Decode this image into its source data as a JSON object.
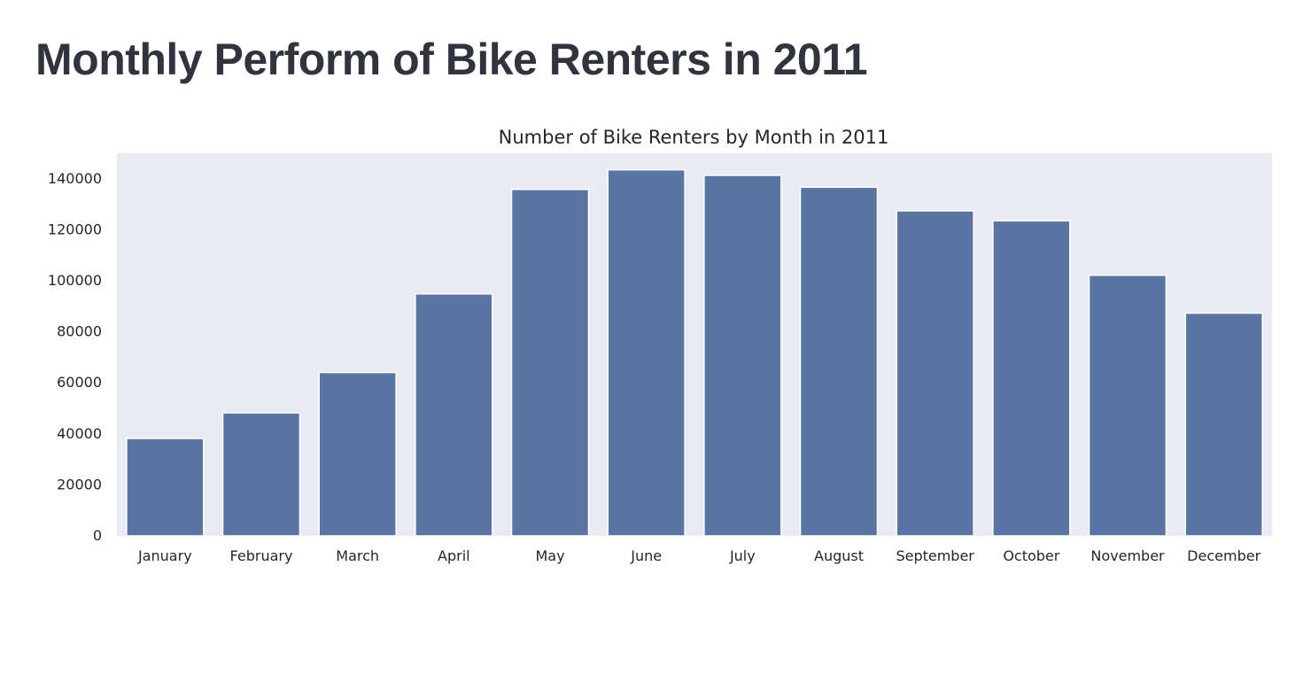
{
  "page": {
    "title": "Monthly Perform of Bike Renters in 2011"
  },
  "colors": {
    "plot_background": "#eaeaf2",
    "bar_fill": "#5875a4",
    "bar_edge": "#ffffff",
    "text": "#262626",
    "title_text": "#31333f"
  },
  "chart_data": {
    "type": "bar",
    "title": "Number of Bike Renters by Month in 2011",
    "xlabel": "",
    "ylabel": "",
    "categories": [
      "January",
      "February",
      "March",
      "April",
      "May",
      "June",
      "July",
      "August",
      "September",
      "October",
      "November",
      "December"
    ],
    "values": [
      38189,
      48215,
      64045,
      94870,
      135821,
      143512,
      141341,
      136691,
      127418,
      123511,
      102167,
      87323
    ],
    "ylim": [
      0,
      150000
    ],
    "yticks": [
      0,
      20000,
      40000,
      60000,
      80000,
      100000,
      120000,
      140000
    ],
    "grid": false,
    "legend": "none"
  }
}
